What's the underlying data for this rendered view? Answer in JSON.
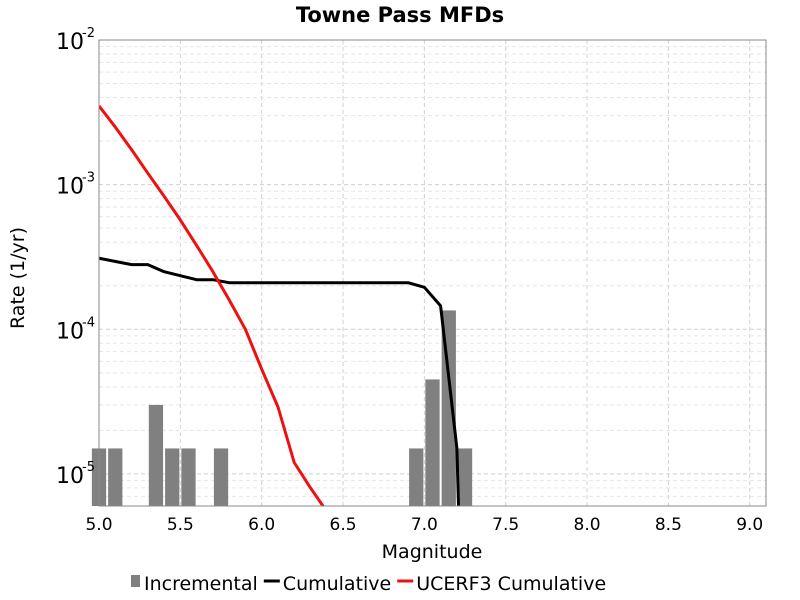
{
  "chart_data": {
    "type": "bar+line",
    "title": "Towne Pass MFDs",
    "xlabel": "Magnitude",
    "ylabel": "Rate (1/yr)",
    "xlim": [
      5.0,
      9.1
    ],
    "ylim": [
      6e-06,
      0.01
    ],
    "yscale": "log",
    "grid": true,
    "legend_position": "bottom",
    "x_ticks": [
      "5.0",
      "5.5",
      "6.0",
      "6.5",
      "7.0",
      "7.5",
      "8.0",
      "8.5",
      "9.0"
    ],
    "y_ticks": [
      {
        "base": "10",
        "exp": "-5"
      },
      {
        "base": "10",
        "exp": "-4"
      },
      {
        "base": "10",
        "exp": "-3"
      },
      {
        "base": "10",
        "exp": "-2"
      }
    ],
    "series": [
      {
        "name": "Incremental",
        "kind": "bar",
        "color": "#808080",
        "x": [
          5.0,
          5.1,
          5.35,
          5.45,
          5.55,
          5.75,
          6.95,
          7.05,
          7.15,
          7.25
        ],
        "y": [
          1.5e-05,
          1.5e-05,
          3e-05,
          1.5e-05,
          1.5e-05,
          1.5e-05,
          1.5e-05,
          4.5e-05,
          0.000135,
          1.5e-05
        ]
      },
      {
        "name": "Cumulative",
        "kind": "line",
        "color": "#000000",
        "x": [
          5.0,
          5.2,
          5.3,
          5.4,
          5.6,
          5.7,
          5.8,
          5.9,
          6.0,
          6.5,
          6.9,
          7.0,
          7.1,
          7.2,
          7.21
        ],
        "y": [
          0.00031,
          0.00028,
          0.00028,
          0.00025,
          0.00022,
          0.00022,
          0.00021,
          0.00021,
          0.00021,
          0.00021,
          0.00021,
          0.000195,
          0.000145,
          1.5e-05,
          6e-06
        ]
      },
      {
        "name": "UCERF3 Cumulative",
        "kind": "line",
        "color": "#ee1111",
        "x": [
          5.0,
          5.1,
          5.2,
          5.3,
          5.4,
          5.5,
          5.6,
          5.7,
          5.8,
          5.9,
          6.0,
          6.1,
          6.2,
          6.3,
          6.4,
          6.5
        ],
        "y": [
          0.0035,
          0.0025,
          0.00175,
          0.0012,
          0.00083,
          0.00057,
          0.00038,
          0.00025,
          0.00016,
          0.0001,
          5.3e-05,
          2.9e-05,
          1.2e-05,
          8e-06,
          5.5e-06,
          3.2e-06
        ]
      }
    ]
  }
}
